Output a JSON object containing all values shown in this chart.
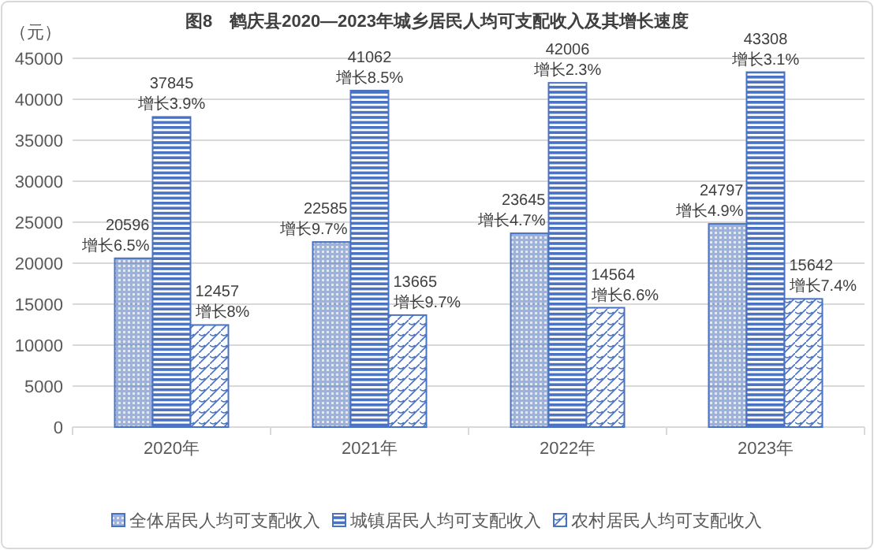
{
  "chart_data": {
    "type": "bar",
    "title": "图8　鹤庆县2020—2023年城乡居民人均可支配收入及其增长速度",
    "ylabel": "（元）",
    "categories": [
      "2020年",
      "2021年",
      "2022年",
      "2023年"
    ],
    "series": [
      {
        "name": "全体居民人均可支配收入",
        "color": "#4a72c2",
        "values": [
          20596,
          22585,
          23645,
          24797
        ],
        "value_labels": [
          "20596\n增长6.5%",
          "22585\n增长9.7%",
          "23645\n增长4.7%",
          "24797\n增长4.9%"
        ]
      },
      {
        "name": "城镇居民人均可支配收入",
        "color": "#4a72c2",
        "values": [
          37845,
          41062,
          42006,
          43308
        ],
        "value_labels": [
          "37845\n增长3.9%",
          "41062\n增长8.5%",
          "42006\n增长2.3%",
          "43308\n增长3.1%"
        ]
      },
      {
        "name": "农村居民人均可支配收入",
        "color": "#4a72c2",
        "values": [
          12457,
          13665,
          14564,
          15642
        ],
        "value_labels": [
          "12457\n增长8%",
          "13665\n增长9.7%",
          "14564\n增长6.6%",
          "15642\n增长7.4%"
        ]
      }
    ],
    "ylim": [
      0,
      45000
    ],
    "yticks": [
      0,
      5000,
      10000,
      15000,
      20000,
      25000,
      30000,
      35000,
      40000,
      45000
    ],
    "grid": "y",
    "legend": "bottom"
  }
}
